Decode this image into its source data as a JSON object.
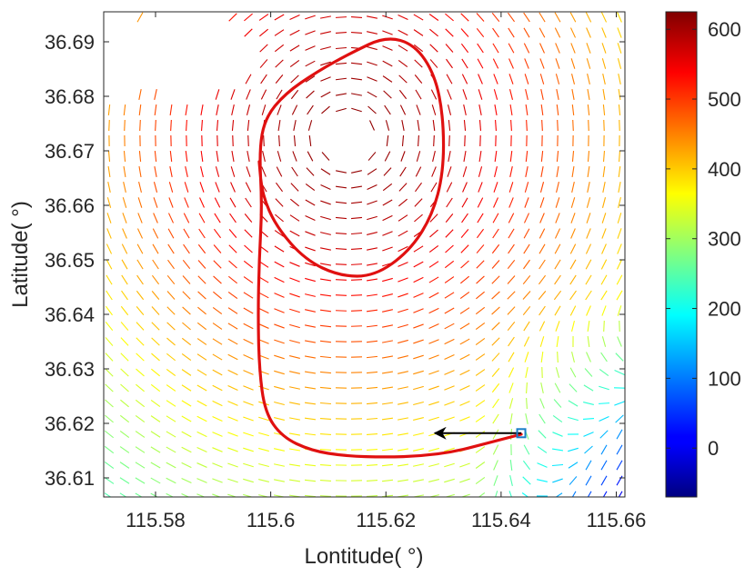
{
  "chart_data": {
    "type": "quiver",
    "xlabel": "Lontitude( °)",
    "ylabel": "Latitude( °)",
    "xlim": [
      115.571,
      115.6615
    ],
    "ylim": [
      36.6065,
      36.6955
    ],
    "xticks": [
      115.58,
      115.6,
      115.62,
      115.64,
      115.66
    ],
    "xtick_labels": [
      "115.58",
      "115.6",
      "115.62",
      "115.64",
      "115.66"
    ],
    "yticks": [
      36.61,
      36.62,
      36.63,
      36.64,
      36.65,
      36.66,
      36.67,
      36.68,
      36.69
    ],
    "ytick_labels": [
      "36.61",
      "36.62",
      "36.63",
      "36.64",
      "36.65",
      "36.66",
      "36.67",
      "36.68",
      "36.69"
    ],
    "colorbar": {
      "colormap": "jet",
      "clim": [
        -70,
        625
      ],
      "ticks": [
        0,
        100,
        200,
        300,
        400,
        500,
        600
      ],
      "tick_labels": [
        "0",
        "100",
        "200",
        "300",
        "400",
        "500",
        "600"
      ]
    },
    "field": {
      "description_type": "direction dashes colored by magnitude",
      "center": [
        115.6135,
        36.6727
      ],
      "peak_value": 615,
      "decay_scale_deg": 0.0435,
      "baseline": 160,
      "baseline_lon_slope": -4200
    },
    "trajectory": {
      "color": "#e01010",
      "points": [
        [
          115.6435,
          36.618
        ],
        [
          115.638,
          36.6165
        ],
        [
          115.632,
          36.6148
        ],
        [
          115.626,
          36.614
        ],
        [
          115.62,
          36.6138
        ],
        [
          115.613,
          36.614
        ],
        [
          115.607,
          36.615
        ],
        [
          115.602,
          36.6175
        ],
        [
          115.599,
          36.622
        ],
        [
          115.598,
          36.63
        ],
        [
          115.5978,
          36.64
        ],
        [
          115.598,
          36.65
        ],
        [
          115.5985,
          36.66
        ],
        [
          115.598,
          36.67
        ],
        [
          115.599,
          36.676
        ],
        [
          115.6025,
          36.6805
        ],
        [
          115.608,
          36.6845
        ],
        [
          115.614,
          36.688
        ],
        [
          115.62,
          36.691
        ],
        [
          115.625,
          36.6895
        ],
        [
          115.6285,
          36.684
        ],
        [
          115.63,
          36.676
        ],
        [
          115.63,
          36.666
        ],
        [
          115.628,
          36.658
        ],
        [
          115.624,
          36.6515
        ],
        [
          115.618,
          36.647
        ],
        [
          115.612,
          36.647
        ],
        [
          115.606,
          36.65
        ],
        [
          115.601,
          36.656
        ],
        [
          115.5985,
          36.662
        ],
        [
          115.598,
          36.668
        ]
      ]
    },
    "start_marker": {
      "lon": 115.6435,
      "lat": 36.6182,
      "color": "#1a7dc8"
    },
    "arrow": {
      "from": [
        115.6435,
        36.6182
      ],
      "to": [
        115.6285,
        36.6182
      ],
      "color": "#000000"
    }
  }
}
